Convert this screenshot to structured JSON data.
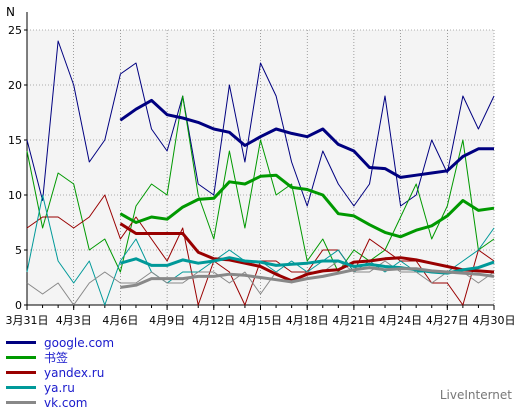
{
  "chart_data": {
    "type": "line",
    "ylabel": "N",
    "ylim": [
      0,
      25
    ],
    "y_ticks": [
      "0",
      "5",
      "10",
      "15",
      "20",
      "25"
    ],
    "grid": true,
    "x_days": [
      "3月31日",
      "4月1日",
      "4月2日",
      "4月3日",
      "4月4日",
      "4月5日",
      "4月6日",
      "4月7日",
      "4月8日",
      "4月9日",
      "4月10日",
      "4月11日",
      "4月12日",
      "4月13日",
      "4月14日",
      "4月15日",
      "4月16日",
      "4月17日",
      "4月18日",
      "4月19日",
      "4月20日",
      "4月21日",
      "4月22日",
      "4月23日",
      "4月24日",
      "4月25日",
      "4月26日",
      "4月27日",
      "4月28日",
      "4月29日",
      "4月30日"
    ],
    "x_tick_labels": [
      "3月31日",
      "4月3日",
      "4月6日",
      "4月9日",
      "4月12日",
      "4月15日",
      "4月18日",
      "4月21日",
      "4月24日",
      "4月27日",
      "4月30日"
    ],
    "series": [
      {
        "name": "google.com",
        "color": "#000080",
        "role": "daily",
        "values": [
          15,
          9.5,
          24,
          20,
          13,
          15,
          21,
          22,
          16,
          14,
          19,
          11,
          10,
          20,
          13,
          22,
          19,
          13,
          9,
          14,
          11,
          9,
          11,
          19,
          9,
          10,
          15,
          12,
          19,
          16,
          19
        ]
      },
      {
        "name": "google.com",
        "color": "#000080",
        "role": "average",
        "x_start": 6,
        "values": [
          16.8,
          17.8,
          18.6,
          17.3,
          17,
          16.6,
          16,
          15.7,
          14.5,
          15.3,
          16,
          15.6,
          15.3,
          16,
          14.6,
          14,
          12.5,
          12.4,
          11.6,
          11.8,
          12,
          12.2,
          13.5,
          14.2,
          14.2
        ]
      },
      {
        "name": "书签",
        "color": "#009900",
        "role": "daily",
        "values": [
          14,
          7,
          12,
          11,
          5,
          6,
          3,
          9,
          11,
          10,
          19,
          10,
          6,
          14,
          7,
          15,
          10,
          11,
          4,
          6,
          3,
          5,
          4,
          5,
          8,
          11,
          6,
          9,
          15,
          5,
          6
        ]
      },
      {
        "name": "书签",
        "color": "#009900",
        "role": "average",
        "x_start": 6,
        "values": [
          8.3,
          7.5,
          8,
          7.8,
          8.9,
          9.6,
          9.7,
          11.2,
          11,
          11.7,
          11.8,
          10.7,
          10.5,
          10,
          8.3,
          8.1,
          7.3,
          6.6,
          6.2,
          6.8,
          7.2,
          8.1,
          9.5,
          8.6,
          8.8
        ]
      },
      {
        "name": "yandex.ru",
        "color": "#990000",
        "role": "daily",
        "values": [
          7,
          8,
          8,
          7,
          8,
          10,
          6,
          8,
          6,
          4,
          7,
          0,
          4,
          3,
          0,
          4,
          4,
          3,
          3,
          5,
          5,
          3,
          6,
          5,
          4,
          4,
          2,
          2,
          0,
          5,
          4
        ]
      },
      {
        "name": "yandex.ru",
        "color": "#990000",
        "role": "average",
        "x_start": 6,
        "values": [
          7.4,
          6.5,
          6.5,
          6.5,
          6.5,
          4.8,
          4.2,
          4.1,
          3.8,
          3.5,
          2.8,
          2.2,
          2.8,
          3.1,
          3.2,
          3.9,
          4,
          4.2,
          4.3,
          4.1,
          3.8,
          3.5,
          3.2,
          3.1,
          3
        ]
      },
      {
        "name": "ya.ru",
        "color": "#009999",
        "role": "daily",
        "values": [
          3,
          10,
          4,
          2,
          4,
          0,
          4,
          6,
          3,
          2,
          3,
          3,
          4,
          5,
          4,
          4,
          3,
          4,
          3,
          4,
          5,
          3,
          4,
          3,
          4,
          3,
          3,
          3,
          4,
          5,
          7
        ]
      },
      {
        "name": "ya.ru",
        "color": "#009999",
        "role": "average",
        "x_start": 6,
        "values": [
          3.8,
          4.2,
          3.6,
          3.6,
          4.1,
          3.8,
          4,
          4.3,
          4,
          3.9,
          3.6,
          3.7,
          3.8,
          4,
          4,
          3.5,
          3.7,
          3.5,
          3.4,
          3.2,
          3,
          2.9,
          3.2,
          3.4,
          3.9
        ]
      },
      {
        "name": "vk.com",
        "color": "#888888",
        "role": "daily",
        "values": [
          2,
          1,
          2,
          0,
          2,
          3,
          2,
          2,
          3,
          2,
          2,
          3,
          3,
          2,
          3,
          1,
          3,
          2,
          3,
          3,
          4,
          3,
          3,
          4,
          3,
          3,
          2,
          3,
          3,
          2,
          3
        ]
      },
      {
        "name": "vk.com",
        "color": "#888888",
        "role": "average",
        "x_start": 6,
        "values": [
          1.6,
          1.8,
          2.4,
          2.4,
          2.4,
          2.6,
          2.6,
          2.8,
          2.7,
          2.5,
          2.3,
          2.1,
          2.4,
          2.6,
          2.9,
          3.2,
          3.4,
          3.2,
          3.3,
          3.3,
          3.1,
          3,
          2.9,
          2.8,
          2.6
        ]
      }
    ]
  },
  "legend": [
    {
      "label": "google.com",
      "color": "#000080"
    },
    {
      "label": "书签",
      "color": "#009900"
    },
    {
      "label": "yandex.ru",
      "color": "#990000"
    },
    {
      "label": "ya.ru",
      "color": "#009999"
    },
    {
      "label": "vk.com",
      "color": "#888888"
    }
  ],
  "footer": {
    "brand": "LiveInternet"
  }
}
